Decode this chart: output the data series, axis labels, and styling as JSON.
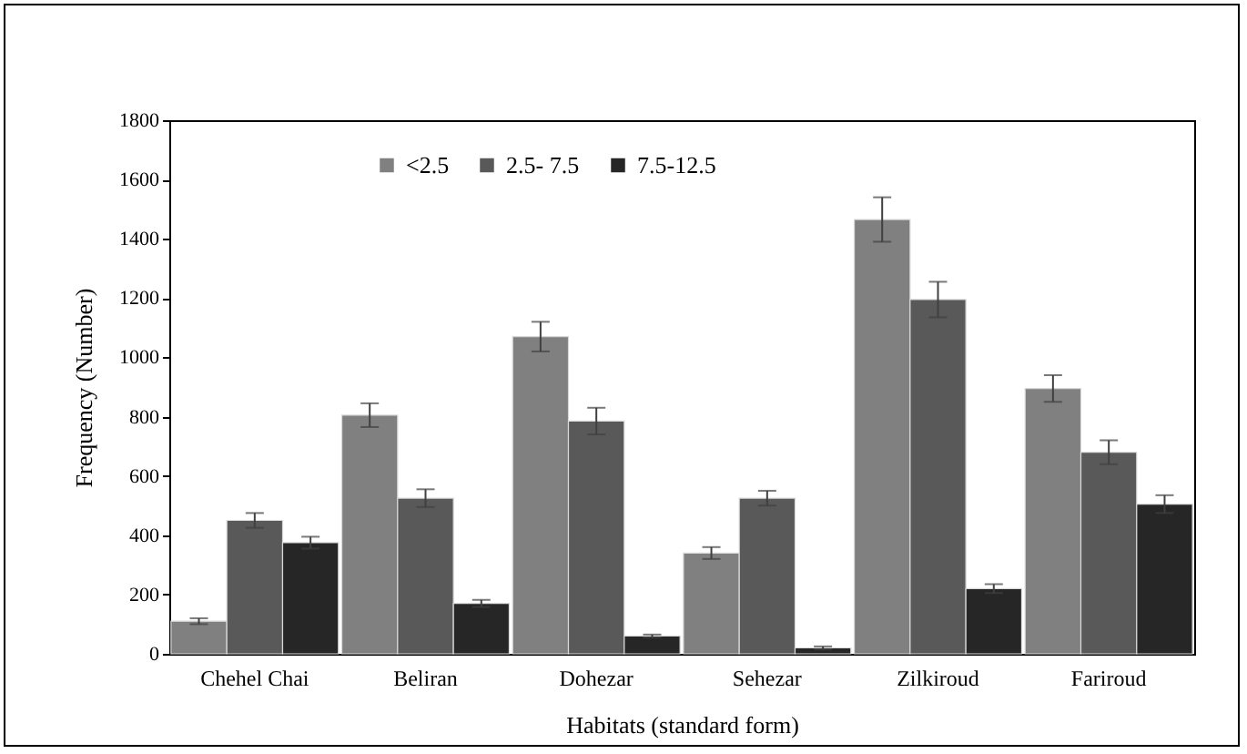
{
  "chart_data": {
    "type": "bar",
    "xlabel": "Habitats (standard form)",
    "ylabel": "Frequency (Number)",
    "categories": [
      "Chehel Chai",
      "Beliran",
      "Dohezar",
      "Sehezar",
      "Zilkiroud",
      "Fariroud"
    ],
    "series": [
      {
        "name": "<2.5",
        "color": "#808080",
        "values": [
          110,
          805,
          1070,
          340,
          1465,
          895
        ],
        "errors": [
          10,
          40,
          50,
          20,
          75,
          45
        ]
      },
      {
        "name": "2.5- 7.5",
        "color": "#595959",
        "values": [
          450,
          525,
          785,
          525,
          1195,
          680
        ],
        "errors": [
          25,
          30,
          45,
          25,
          60,
          40
        ]
      },
      {
        "name": "7.5-12.5",
        "color": "#262626",
        "values": [
          375,
          170,
          60,
          20,
          220,
          505
        ],
        "errors": [
          20,
          12,
          5,
          5,
          15,
          30
        ]
      }
    ],
    "ylim": [
      0,
      1800
    ],
    "yticks": [
      0,
      200,
      400,
      600,
      800,
      1000,
      1200,
      1400,
      1600,
      1800
    ],
    "grid": false,
    "legend": "top left"
  }
}
